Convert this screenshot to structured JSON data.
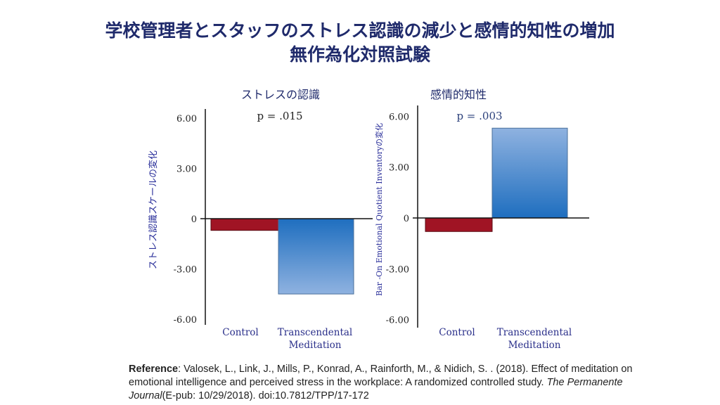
{
  "title_line1": "学校管理者とスタッフのストレス認識の減少と感情的知性の増加",
  "title_line2": "無作為化対照試験",
  "colors": {
    "control": "#a01424",
    "tm_dark": "#1e6ebf",
    "tm_light": "#8fb2e0",
    "title": "#1f2a6b"
  },
  "chart_data": [
    {
      "type": "bar",
      "title": "ストレスの認識",
      "annotation": "p = .015",
      "ylabel": "ストレス認識スケールの変化",
      "categories": [
        "Control",
        "Transcendental Meditation"
      ],
      "category_lines": [
        [
          "Control"
        ],
        [
          "Transcendental",
          "Meditation"
        ]
      ],
      "values": [
        -0.7,
        -4.5
      ],
      "yticks": [
        "6.00",
        "3.00",
        "0",
        "-3.00",
        "-6.00"
      ],
      "ylim": [
        -6,
        6
      ],
      "grid": false
    },
    {
      "type": "bar",
      "title": "感情的知性",
      "annotation": "p = .003",
      "ylabel": "Bar -On Emotional Quotient Inventoryの変化",
      "categories": [
        "Control",
        "Transcendental Meditation"
      ],
      "category_lines": [
        [
          "Control"
        ],
        [
          "Transcendental",
          "Meditation"
        ]
      ],
      "values": [
        -0.8,
        5.3
      ],
      "yticks": [
        "6.00",
        "3.00",
        "0",
        "-3.00",
        "-6.00"
      ],
      "ylim": [
        -6,
        6
      ],
      "grid": false
    }
  ],
  "reference": {
    "label": "Reference",
    "text1": ": Valosek, L., Link, J., Mills, P., Konrad, A., Rainforth, M., & Nidich, S. . (2018). Effect of meditation on emotional intelligence and perceived stress in the workplace: A randomized controlled study. ",
    "journal": "The Permanente Journal",
    "text2": "(E-pub: 10/29/2018). doi:10.7812/TPP/17-172"
  }
}
